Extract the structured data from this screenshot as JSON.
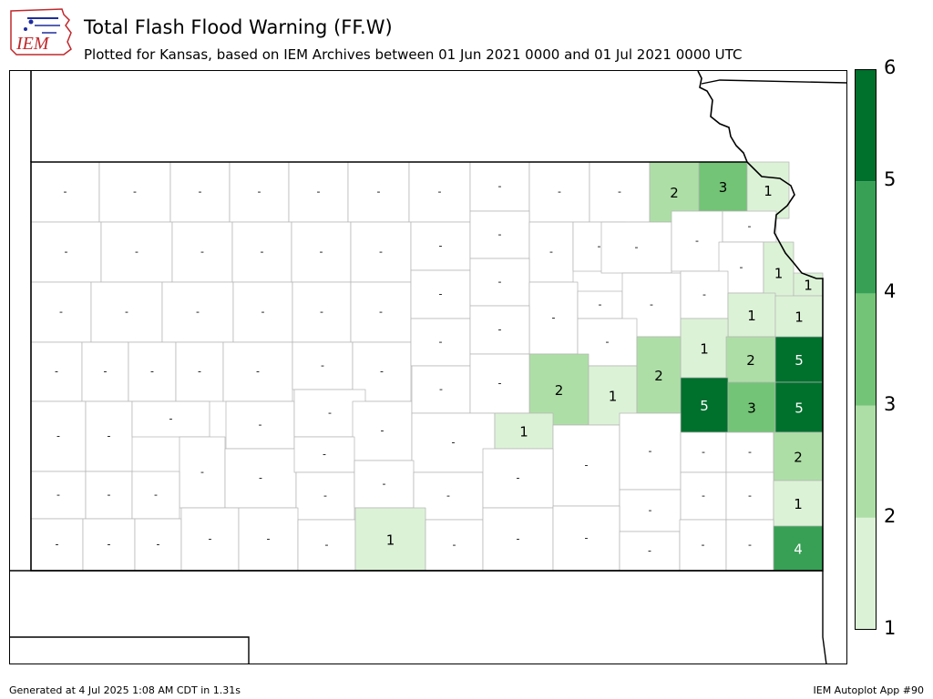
{
  "header": {
    "title": "Total Flash Flood Warning (FF.W)",
    "subtitle": "Plotted for Kansas, based on IEM Archives  between 01 Jun 2021 0000 and 01 Jul 2021 0000 UTC",
    "logo_text": "IEM"
  },
  "footer": {
    "generated": "Generated at 4 Jul 2025 1:08 AM CDT in 1.31s",
    "app": "IEM Autoplot App #90"
  },
  "colorbar": {
    "ticks": [
      "1",
      "2",
      "3",
      "4",
      "5",
      "6"
    ],
    "colors": [
      "#e5f5e0",
      "#c7e9c0",
      "#a1d99b",
      "#74c476",
      "#31a354",
      "#006d2c"
    ]
  },
  "palette": {
    "1": "#dcf2d7",
    "2": "#addea6",
    "3": "#73c476",
    "4": "#37a055",
    "5": "#00702d"
  },
  "counties": [
    {
      "label": "-",
      "x0": 34,
      "y0": 178,
      "x1": 109,
      "y1": 244
    },
    {
      "label": "-",
      "x0": 109,
      "y0": 178,
      "x1": 187,
      "y1": 244
    },
    {
      "label": "-",
      "x0": 187,
      "y0": 178,
      "x1": 252,
      "y1": 244
    },
    {
      "label": "-",
      "x0": 252,
      "y0": 178,
      "x1": 317,
      "y1": 244
    },
    {
      "label": "-",
      "x0": 317,
      "y0": 178,
      "x1": 382,
      "y1": 244
    },
    {
      "label": "-",
      "x0": 382,
      "y0": 178,
      "x1": 449,
      "y1": 244
    },
    {
      "label": "-",
      "x0": 449,
      "y0": 178,
      "x1": 516,
      "y1": 244
    },
    {
      "label": "-",
      "x0": 516,
      "y0": 178,
      "x1": 581,
      "y1": 232
    },
    {
      "label": "-",
      "x0": 581,
      "y0": 178,
      "x1": 647,
      "y1": 244
    },
    {
      "label": "-",
      "x0": 647,
      "y0": 178,
      "x1": 713,
      "y1": 244
    },
    {
      "label": "2",
      "x0": 713,
      "y0": 178,
      "x1": 767,
      "y1": 244
    },
    {
      "label": "3",
      "x0": 767,
      "y0": 178,
      "x1": 820,
      "y1": 232
    },
    {
      "label": "1",
      "x0": 820,
      "y0": 178,
      "x1": 866,
      "y1": 240
    },
    {
      "label": "-",
      "x0": 34,
      "y0": 244,
      "x1": 111,
      "y1": 310
    },
    {
      "label": "-",
      "x0": 111,
      "y0": 244,
      "x1": 189,
      "y1": 310
    },
    {
      "label": "-",
      "x0": 189,
      "y0": 244,
      "x1": 255,
      "y1": 310
    },
    {
      "label": "-",
      "x0": 255,
      "y0": 244,
      "x1": 320,
      "y1": 310
    },
    {
      "label": "-",
      "x0": 320,
      "y0": 244,
      "x1": 385,
      "y1": 310
    },
    {
      "label": "-",
      "x0": 385,
      "y0": 244,
      "x1": 451,
      "y1": 310
    },
    {
      "label": "-",
      "x0": 451,
      "y0": 244,
      "x1": 516,
      "y1": 297
    },
    {
      "label": "-",
      "x0": 516,
      "y0": 232,
      "x1": 581,
      "y1": 284
    },
    {
      "label": "-",
      "x0": 581,
      "y0": 244,
      "x1": 629,
      "y1": 310
    },
    {
      "label": "-",
      "x0": 629,
      "y0": 244,
      "x1": 686,
      "y1": 298
    },
    {
      "label": "-",
      "x0": 660,
      "y0": 244,
      "x1": 737,
      "y1": 300
    },
    {
      "label": "-",
      "x0": 737,
      "y0": 232,
      "x1": 793,
      "y1": 298
    },
    {
      "label": "-",
      "x0": 793,
      "y0": 232,
      "x1": 852,
      "y1": 266
    },
    {
      "label": "-",
      "x0": 789,
      "y0": 266,
      "x1": 838,
      "y1": 322
    },
    {
      "label": "1",
      "x0": 838,
      "y0": 266,
      "x1": 871,
      "y1": 333
    },
    {
      "label": "1",
      "x0": 871,
      "y0": 300,
      "x1": 903,
      "y1": 325
    },
    {
      "label": "-",
      "x0": 34,
      "y0": 310,
      "x1": 100,
      "y1": 376
    },
    {
      "label": "-",
      "x0": 100,
      "y0": 310,
      "x1": 178,
      "y1": 376
    },
    {
      "label": "-",
      "x0": 178,
      "y0": 310,
      "x1": 256,
      "y1": 376
    },
    {
      "label": "-",
      "x0": 256,
      "y0": 310,
      "x1": 321,
      "y1": 376
    },
    {
      "label": "-",
      "x0": 321,
      "y0": 310,
      "x1": 385,
      "y1": 376
    },
    {
      "label": "-",
      "x0": 385,
      "y0": 310,
      "x1": 451,
      "y1": 376
    },
    {
      "label": "-",
      "x0": 451,
      "y0": 297,
      "x1": 516,
      "y1": 350
    },
    {
      "label": "-",
      "x0": 516,
      "y0": 284,
      "x1": 581,
      "y1": 336
    },
    {
      "label": "-",
      "x0": 581,
      "y0": 310,
      "x1": 634,
      "y1": 389
    },
    {
      "label": "-",
      "x0": 634,
      "y0": 320,
      "x1": 683,
      "y1": 350
    },
    {
      "label": "-",
      "x0": 683,
      "y0": 300,
      "x1": 747,
      "y1": 370
    },
    {
      "label": "-",
      "x0": 747,
      "y0": 298,
      "x1": 799,
      "y1": 350
    },
    {
      "label": "1",
      "x0": 799,
      "y0": 322,
      "x1": 851,
      "y1": 370
    },
    {
      "label": "1",
      "x0": 851,
      "y0": 325,
      "x1": 903,
      "y1": 370
    },
    {
      "label": "-",
      "x0": 34,
      "y0": 376,
      "x1": 90,
      "y1": 441
    },
    {
      "label": "-",
      "x0": 90,
      "y0": 376,
      "x1": 141,
      "y1": 441
    },
    {
      "label": "-",
      "x0": 141,
      "y0": 376,
      "x1": 193,
      "y1": 441
    },
    {
      "label": "-",
      "x0": 193,
      "y0": 376,
      "x1": 245,
      "y1": 441
    },
    {
      "label": "-",
      "x0": 245,
      "y0": 376,
      "x1": 321,
      "y1": 441
    },
    {
      "label": "-",
      "x0": 321,
      "y0": 376,
      "x1": 387,
      "y1": 428
    },
    {
      "label": "-",
      "x0": 387,
      "y0": 376,
      "x1": 451,
      "y1": 441
    },
    {
      "label": "-",
      "x0": 451,
      "y0": 350,
      "x1": 516,
      "y1": 402
    },
    {
      "label": "-",
      "x0": 516,
      "y0": 336,
      "x1": 581,
      "y1": 389
    },
    {
      "label": "-",
      "x0": 634,
      "y0": 350,
      "x1": 699,
      "y1": 402
    },
    {
      "label": "1",
      "x0": 747,
      "y0": 350,
      "x1": 799,
      "y1": 415
    },
    {
      "label": "2",
      "x0": 797,
      "y0": 370,
      "x1": 851,
      "y1": 420
    },
    {
      "label": "5",
      "x0": 851,
      "y0": 370,
      "x1": 903,
      "y1": 420
    },
    {
      "label": "2",
      "x0": 581,
      "y0": 389,
      "x1": 646,
      "y1": 467
    },
    {
      "label": "1",
      "x0": 646,
      "y0": 402,
      "x1": 699,
      "y1": 467
    },
    {
      "label": "2",
      "x0": 699,
      "y0": 370,
      "x1": 747,
      "y1": 454
    },
    {
      "label": "5",
      "x0": 747,
      "y0": 415,
      "x1": 799,
      "y1": 475
    },
    {
      "label": "3",
      "x0": 799,
      "y0": 420,
      "x1": 851,
      "y1": 475
    },
    {
      "label": "5",
      "x0": 851,
      "y0": 420,
      "x1": 903,
      "y1": 475
    },
    {
      "label": "-",
      "x0": 34,
      "y0": 441,
      "x1": 94,
      "y1": 518
    },
    {
      "label": "-",
      "x0": 94,
      "y0": 441,
      "x1": 145,
      "y1": 518
    },
    {
      "label": "-",
      "x0": 145,
      "y0": 441,
      "x1": 230,
      "y1": 480
    },
    {
      "label": "-",
      "x0": 248,
      "y0": 441,
      "x1": 323,
      "y1": 493
    },
    {
      "label": "-",
      "x0": 323,
      "y0": 428,
      "x1": 401,
      "y1": 480
    },
    {
      "label": "-",
      "x0": 387,
      "y0": 441,
      "x1": 452,
      "y1": 506
    },
    {
      "label": "-",
      "x0": 452,
      "y0": 402,
      "x1": 516,
      "y1": 454
    },
    {
      "label": "-",
      "x0": 516,
      "y0": 389,
      "x1": 581,
      "y1": 454
    },
    {
      "label": "-",
      "x0": 452,
      "y0": 454,
      "x1": 543,
      "y1": 519
    },
    {
      "label": "1",
      "x0": 543,
      "y0": 454,
      "x1": 607,
      "y1": 493
    },
    {
      "label": "-",
      "x0": 197,
      "y0": 480,
      "x1": 247,
      "y1": 558
    },
    {
      "label": "-",
      "x0": 247,
      "y0": 493,
      "x1": 325,
      "y1": 558
    },
    {
      "label": "-",
      "x0": 323,
      "y0": 480,
      "x1": 389,
      "y1": 519
    },
    {
      "label": "-",
      "x0": 607,
      "y0": 467,
      "x1": 680,
      "y1": 556
    },
    {
      "label": "-",
      "x0": 680,
      "y0": 454,
      "x1": 747,
      "y1": 538
    },
    {
      "label": "-",
      "x0": 747,
      "y0": 475,
      "x1": 797,
      "y1": 519
    },
    {
      "label": "-",
      "x0": 797,
      "y0": 475,
      "x1": 849,
      "y1": 519
    },
    {
      "label": "2",
      "x0": 849,
      "y0": 475,
      "x1": 903,
      "y1": 528
    },
    {
      "label": "-",
      "x0": 34,
      "y0": 518,
      "x1": 94,
      "y1": 570
    },
    {
      "label": "-",
      "x0": 94,
      "y0": 518,
      "x1": 145,
      "y1": 570
    },
    {
      "label": "-",
      "x0": 145,
      "y0": 518,
      "x1": 197,
      "y1": 570
    },
    {
      "label": "-",
      "x0": 325,
      "y0": 519,
      "x1": 389,
      "y1": 571
    },
    {
      "label": "-",
      "x0": 389,
      "y0": 506,
      "x1": 454,
      "y1": 558
    },
    {
      "label": "-",
      "x0": 454,
      "y0": 519,
      "x1": 530,
      "y1": 571
    },
    {
      "label": "-",
      "x0": 530,
      "y0": 493,
      "x1": 607,
      "y1": 558
    },
    {
      "label": "-",
      "x0": 680,
      "y0": 538,
      "x1": 747,
      "y1": 584
    },
    {
      "label": "-",
      "x0": 747,
      "y0": 519,
      "x1": 797,
      "y1": 571
    },
    {
      "label": "-",
      "x0": 797,
      "y0": 519,
      "x1": 849,
      "y1": 571
    },
    {
      "label": "1",
      "x0": 849,
      "y0": 528,
      "x1": 903,
      "y1": 578
    },
    {
      "label": "-",
      "x0": 34,
      "y0": 570,
      "x1": 91,
      "y1": 627
    },
    {
      "label": "-",
      "x0": 91,
      "y0": 570,
      "x1": 148,
      "y1": 627
    },
    {
      "label": "-",
      "x0": 148,
      "y0": 570,
      "x1": 199,
      "y1": 627
    },
    {
      "label": "-",
      "x0": 199,
      "y0": 558,
      "x1": 262,
      "y1": 627
    },
    {
      "label": "-",
      "x0": 262,
      "y0": 558,
      "x1": 327,
      "y1": 627
    },
    {
      "label": "-",
      "x0": 327,
      "y0": 571,
      "x1": 390,
      "y1": 627
    },
    {
      "label": "1",
      "x0": 390,
      "y0": 558,
      "x1": 467,
      "y1": 627
    },
    {
      "label": "-",
      "x0": 467,
      "y0": 571,
      "x1": 530,
      "y1": 627
    },
    {
      "label": "-",
      "x0": 530,
      "y0": 558,
      "x1": 607,
      "y1": 627
    },
    {
      "label": "-",
      "x0": 607,
      "y0": 556,
      "x1": 680,
      "y1": 627
    },
    {
      "label": "-",
      "x0": 680,
      "y0": 584,
      "x1": 746,
      "y1": 627
    },
    {
      "label": "-",
      "x0": 746,
      "y0": 571,
      "x1": 797,
      "y1": 627
    },
    {
      "label": "-",
      "x0": 797,
      "y0": 571,
      "x1": 849,
      "y1": 627
    },
    {
      "label": "4",
      "x0": 849,
      "y0": 578,
      "x1": 903,
      "y1": 627
    }
  ]
}
